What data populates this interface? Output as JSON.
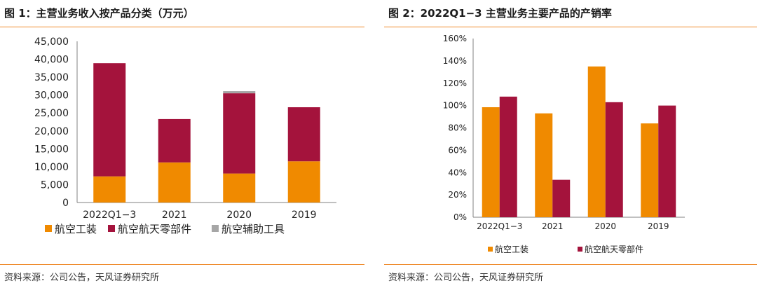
{
  "left": {
    "title": "图 1：主营业务收入按产品分类（万元）",
    "source": "资料来源：公司公告，天风证券研究所"
  },
  "right": {
    "title": "图 2：2022Q1−3 主营业务主要产品的产销率",
    "source": "资料来源：公司公告，天风证券研究所"
  },
  "chart_data": [
    {
      "type": "bar",
      "stacked": true,
      "title": "图 1：主营业务收入按产品分类（万元）",
      "categories": [
        "2022Q1−3",
        "2021",
        "2020",
        "2019"
      ],
      "series": [
        {
          "name": "航空工装",
          "color": "#f08a00",
          "values": [
            7300,
            11200,
            8100,
            11500
          ]
        },
        {
          "name": "航空航天零部件",
          "color": "#a4133c",
          "values": [
            31600,
            12100,
            22400,
            15100
          ]
        },
        {
          "name": "航空辅助工具",
          "color": "#a6a6a6",
          "values": [
            0,
            0,
            600,
            0
          ]
        }
      ],
      "ylim": [
        0,
        45000
      ],
      "yticks": [
        "0",
        "5,000",
        "10,000",
        "15,000",
        "20,000",
        "25,000",
        "30,000",
        "35,000",
        "40,000",
        "45,000"
      ],
      "grid": false,
      "legend_position": "bottom"
    },
    {
      "type": "bar",
      "stacked": false,
      "title": "图 2：2022Q1−3 主营业务主要产品的产销率",
      "categories": [
        "2022Q1−3",
        "2021",
        "2020",
        "2019"
      ],
      "series": [
        {
          "name": "航空工装",
          "color": "#f08a00",
          "values": [
            98.5,
            93,
            135,
            84
          ]
        },
        {
          "name": "航空航天零部件",
          "color": "#a4133c",
          "values": [
            108,
            33.5,
            103,
            100
          ]
        }
      ],
      "ylim": [
        0,
        160
      ],
      "unit": "%",
      "yticks": [
        "0%",
        "20%",
        "40%",
        "60%",
        "80%",
        "100%",
        "120%",
        "140%",
        "160%"
      ],
      "grid": false,
      "legend_position": "bottom"
    }
  ]
}
